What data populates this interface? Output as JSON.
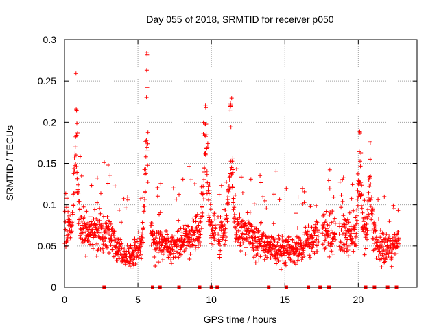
{
  "chart_data": {
    "type": "scatter",
    "title": "Day 055 of 2018, SRMTID for receiver p050",
    "xlabel": "GPS time / hours",
    "ylabel": "SRMTID / TECUs",
    "xlim": [
      0,
      24
    ],
    "ylim": [
      0,
      0.3
    ],
    "x_ticks": [
      0,
      5,
      10,
      15,
      20
    ],
    "x_tick_labels": [
      "0",
      "5",
      "10",
      "15",
      "20"
    ],
    "y_ticks": [
      0,
      0.05,
      0.1,
      0.15,
      0.2,
      0.25,
      0.3
    ],
    "y_tick_labels": [
      "0",
      "0.05",
      "0.1",
      "0.15",
      "0.2",
      "0.25",
      "0.3"
    ],
    "grid": true,
    "marker": "+",
    "series_color": "#ff0000",
    "peaks": [
      {
        "x": 0.8,
        "y": 0.216
      },
      {
        "x": 5.6,
        "y": 0.284
      },
      {
        "x": 9.6,
        "y": 0.22
      },
      {
        "x": 11.3,
        "y": 0.223
      },
      {
        "x": 20.1,
        "y": 0.189
      },
      {
        "x": 20.8,
        "y": 0.177
      }
    ],
    "baseline_markers_x": [
      2.7,
      6.0,
      6.5,
      7.8,
      9.2,
      10.0,
      10.4,
      13.9,
      15.1,
      16.6,
      17.4,
      18.0,
      20.5,
      21.1,
      22.0,
      22.6
    ]
  }
}
